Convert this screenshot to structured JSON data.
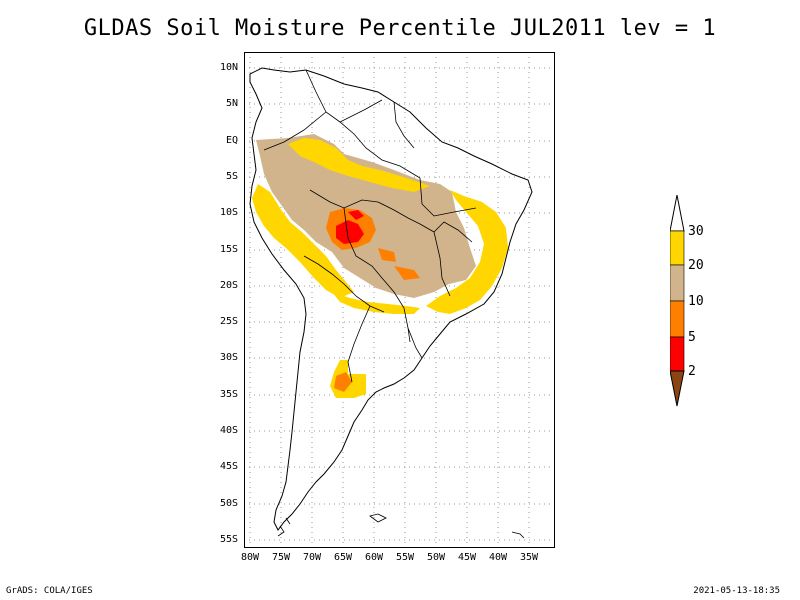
{
  "title": "GLDAS Soil Moisture Percentile JUL2011 lev = 1",
  "footer": {
    "left": "GrADS: COLA/IGES",
    "right": "2021-05-13-18:35"
  },
  "map": {
    "lat_labels": [
      "10N",
      "5N",
      "EQ",
      "5S",
      "10S",
      "15S",
      "20S",
      "25S",
      "30S",
      "35S",
      "40S",
      "45S",
      "50S",
      "55S"
    ],
    "lon_labels": [
      "80W",
      "75W",
      "70W",
      "65W",
      "60W",
      "55W",
      "50W",
      "45W",
      "40W",
      "35W"
    ]
  },
  "legend": {
    "labels": [
      "30",
      "20",
      "10",
      "5",
      "2"
    ],
    "colors": {
      "above": "#ffffff",
      "20-30": "#ffd600",
      "10-20": "#d2b48c",
      "5-10": "#ff8000",
      "2-5": "#ff0000",
      "below": "#8b4513"
    }
  }
}
